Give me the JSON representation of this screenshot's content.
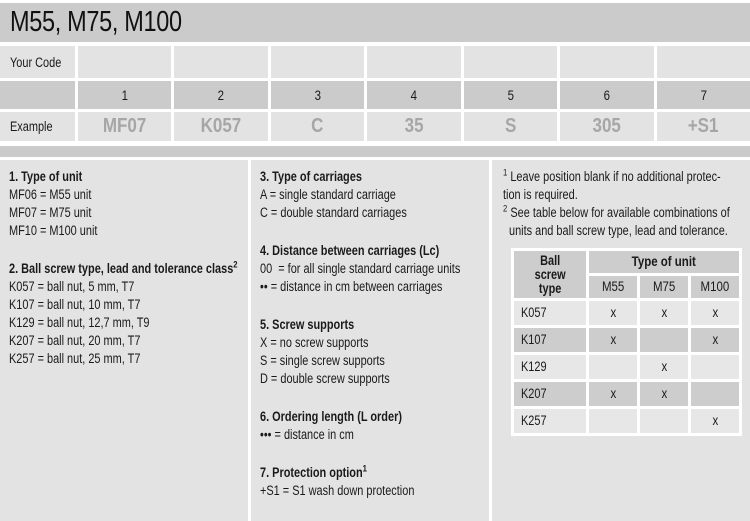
{
  "title": "M55, M75, M100",
  "colors": {
    "band_gray": "#cbcbcb",
    "cell_light": "#e3e3e3",
    "example_text": "#a6a6a6"
  },
  "code_table": {
    "your_code_label": "Your Code",
    "example_label": "Example",
    "positions": [
      "1",
      "2",
      "3",
      "4",
      "5",
      "6",
      "7"
    ],
    "example_values": [
      "MF07",
      "K057",
      "C",
      "35",
      "S",
      "305",
      "+S1"
    ]
  },
  "sections": {
    "s1": {
      "heading": "1. Type of unit",
      "lines": [
        "MF06 = M55 unit",
        "MF07 = M75 unit",
        "MF10 = M100 unit"
      ]
    },
    "s2": {
      "heading": "2. Ball screw type, lead and tolerance class",
      "sup": "2",
      "lines": [
        "K057 = ball nut, 5 mm, T7",
        "K107 = ball nut, 10 mm, T7",
        "K129 = ball nut, 12,7 mm, T9",
        "K207 = ball nut, 20 mm, T7",
        "K257 = ball nut, 25 mm, T7"
      ]
    },
    "s3": {
      "heading": "3. Type of carriages",
      "lines": [
        "A = single standard carriage",
        "C = double standard carriages"
      ]
    },
    "s4": {
      "heading": "4. Distance between carriages (Lc)",
      "lines": [
        "00  = for all single standard carriage units",
        "•• = distance in cm between carriages"
      ]
    },
    "s5": {
      "heading": "5. Screw supports",
      "lines": [
        "X = no screw supports",
        "S = single screw supports",
        "D = double screw supports"
      ]
    },
    "s6": {
      "heading": "6. Ordering length (L order)",
      "lines": [
        "••• = distance in cm"
      ]
    },
    "s7": {
      "heading": "7. Protection option",
      "sup": "1",
      "lines": [
        "+S1 = S1 wash down protection"
      ]
    }
  },
  "footnotes": {
    "f1": {
      "marker": "1",
      "line1": "Leave position blank if no additional protec-",
      "line2": "tion is required."
    },
    "f2": {
      "marker": "2",
      "line1": "See table below for available combinations of",
      "line2": "units and ball screw type, lead and tolerance."
    }
  },
  "combo_table": {
    "col_header": "Ball\nscrew\ntype",
    "group_header": "Type of unit",
    "unit_columns": [
      "M55",
      "M75",
      "M100"
    ],
    "rows": [
      {
        "label": "K057",
        "cells": [
          "x",
          "x",
          "x"
        ]
      },
      {
        "label": "K107",
        "cells": [
          "x",
          "",
          "x"
        ]
      },
      {
        "label": "K129",
        "cells": [
          "",
          "x",
          ""
        ]
      },
      {
        "label": "K207",
        "cells": [
          "x",
          "x",
          ""
        ]
      },
      {
        "label": "K257",
        "cells": [
          "",
          "",
          "x"
        ]
      }
    ]
  }
}
